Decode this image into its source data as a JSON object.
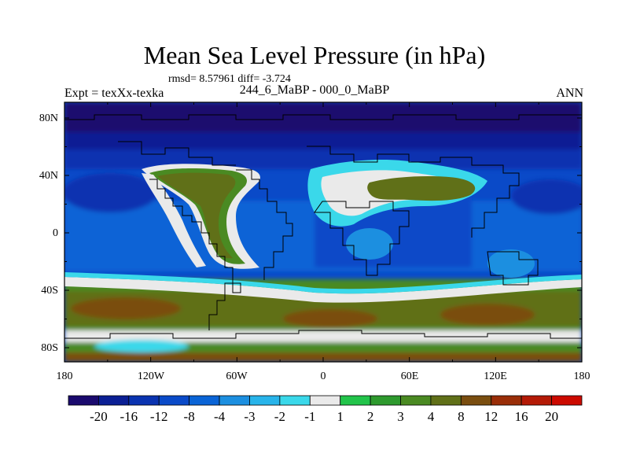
{
  "title": "Mean Sea Level Pressure (in hPa)",
  "stats": "rmsd= 8.57961 diff= -3.724",
  "left_label": "Expt = texXx-texka",
  "center_label": "244_6_MaBP - 000_0_MaBP",
  "right_label": "ANN",
  "lon_ticks": [
    "180",
    "120W",
    "60W",
    "0",
    "60E",
    "120E",
    "180"
  ],
  "lat_ticks": [
    "80N",
    "40N",
    "0",
    "40S",
    "80S"
  ],
  "colorbar": {
    "levels": [
      "-20",
      "-16",
      "-12",
      "-8",
      "-4",
      "-3",
      "-2",
      "-1",
      "1",
      "2",
      "3",
      "4",
      "8",
      "12",
      "16",
      "20"
    ],
    "colors": [
      "#1a0a6e",
      "#0b1f94",
      "#0a33b0",
      "#0a4ac8",
      "#0a64d6",
      "#1c8fe0",
      "#28b4ea",
      "#3ad8ea",
      "#eaeaea",
      "#22c44a",
      "#2e9a2e",
      "#4a8a22",
      "#607018",
      "#7a4e10",
      "#9a2e08",
      "#b41a06",
      "#cc0a00"
    ]
  },
  "colors": {
    "deep_low": "#1a0a6e",
    "low": "#0a33b0",
    "mid_low": "#0a64d6",
    "near_zero": "#eaeaea",
    "mid_high": "#4a8a22",
    "high": "#7a4e10",
    "very_high": "#b41a06"
  }
}
